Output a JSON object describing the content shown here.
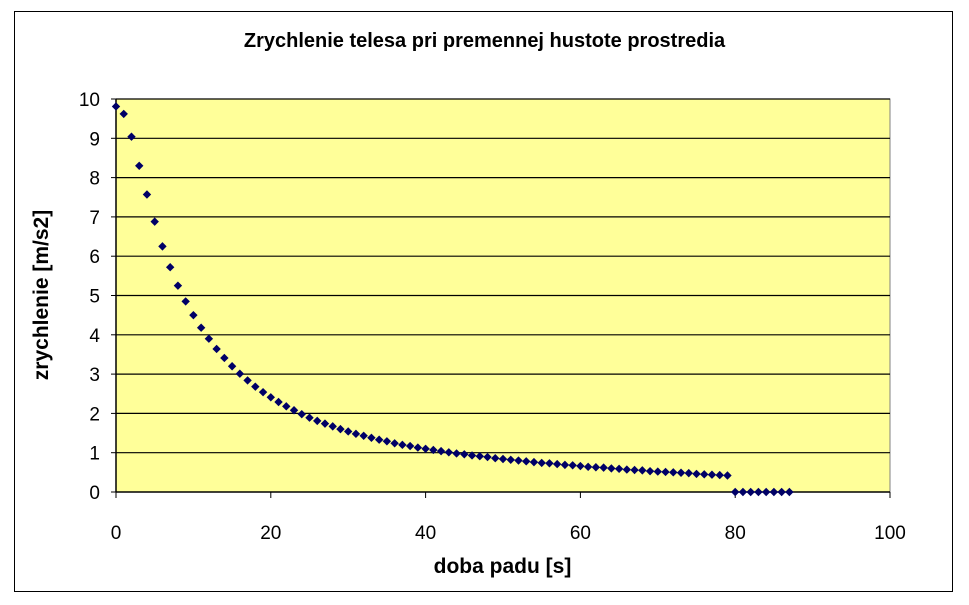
{
  "chart_data": {
    "type": "scatter",
    "title": "Zrychlenie telesa pri premennej hustote prostredia",
    "xlabel": "doba padu [s]",
    "ylabel": "zrychlenie [m/s2]",
    "xlim": [
      0,
      100
    ],
    "ylim": [
      0,
      10
    ],
    "x_ticks": [
      "0",
      "20",
      "40",
      "60",
      "80",
      "100"
    ],
    "y_ticks": [
      "0",
      "1",
      "2",
      "3",
      "4",
      "5",
      "6",
      "7",
      "8",
      "9",
      "10"
    ],
    "grid": "horizontal",
    "legend": "none",
    "colors": {
      "plot_background": "#FFFF99",
      "marker": "#000066",
      "gridline": "#000000"
    },
    "series": [
      {
        "points": [
          [
            0,
            9.81
          ],
          [
            1,
            9.62
          ],
          [
            2,
            9.04
          ],
          [
            3,
            8.3
          ],
          [
            4,
            7.57
          ],
          [
            5,
            6.88
          ],
          [
            6,
            6.25
          ],
          [
            7,
            5.72
          ],
          [
            8,
            5.25
          ],
          [
            9,
            4.85
          ],
          [
            10,
            4.5
          ],
          [
            11,
            4.18
          ],
          [
            12,
            3.9
          ],
          [
            13,
            3.64
          ],
          [
            14,
            3.41
          ],
          [
            15,
            3.2
          ],
          [
            16,
            3.01
          ],
          [
            17,
            2.84
          ],
          [
            18,
            2.68
          ],
          [
            19,
            2.54
          ],
          [
            20,
            2.41
          ],
          [
            21,
            2.29
          ],
          [
            22,
            2.18
          ],
          [
            23,
            2.08
          ],
          [
            24,
            1.98
          ],
          [
            25,
            1.89
          ],
          [
            26,
            1.81
          ],
          [
            27,
            1.74
          ],
          [
            28,
            1.67
          ],
          [
            29,
            1.6
          ],
          [
            30,
            1.54
          ],
          [
            31,
            1.48
          ],
          [
            32,
            1.43
          ],
          [
            33,
            1.38
          ],
          [
            34,
            1.33
          ],
          [
            35,
            1.29
          ],
          [
            36,
            1.24
          ],
          [
            37,
            1.2
          ],
          [
            38,
            1.17
          ],
          [
            39,
            1.13
          ],
          [
            40,
            1.1
          ],
          [
            41,
            1.07
          ],
          [
            42,
            1.04
          ],
          [
            43,
            1.01
          ],
          [
            44,
            0.98
          ],
          [
            45,
            0.96
          ],
          [
            46,
            0.93
          ],
          [
            47,
            0.91
          ],
          [
            48,
            0.89
          ],
          [
            49,
            0.86
          ],
          [
            50,
            0.84
          ],
          [
            51,
            0.82
          ],
          [
            52,
            0.8
          ],
          [
            53,
            0.78
          ],
          [
            54,
            0.76
          ],
          [
            55,
            0.74
          ],
          [
            56,
            0.73
          ],
          [
            57,
            0.71
          ],
          [
            58,
            0.69
          ],
          [
            59,
            0.68
          ],
          [
            60,
            0.66
          ],
          [
            61,
            0.64
          ],
          [
            62,
            0.63
          ],
          [
            63,
            0.62
          ],
          [
            64,
            0.6
          ],
          [
            65,
            0.59
          ],
          [
            66,
            0.57
          ],
          [
            67,
            0.56
          ],
          [
            68,
            0.55
          ],
          [
            69,
            0.53
          ],
          [
            70,
            0.52
          ],
          [
            71,
            0.51
          ],
          [
            72,
            0.5
          ],
          [
            73,
            0.49
          ],
          [
            74,
            0.48
          ],
          [
            75,
            0.46
          ],
          [
            76,
            0.45
          ],
          [
            77,
            0.44
          ],
          [
            78,
            0.43
          ],
          [
            79,
            0.42
          ],
          [
            80,
            0.0
          ],
          [
            81,
            0.0
          ],
          [
            82,
            0.0
          ],
          [
            83,
            0.0
          ],
          [
            84,
            0.0
          ],
          [
            85,
            0.0
          ],
          [
            86,
            0.0
          ],
          [
            87,
            0.0
          ]
        ]
      }
    ]
  }
}
